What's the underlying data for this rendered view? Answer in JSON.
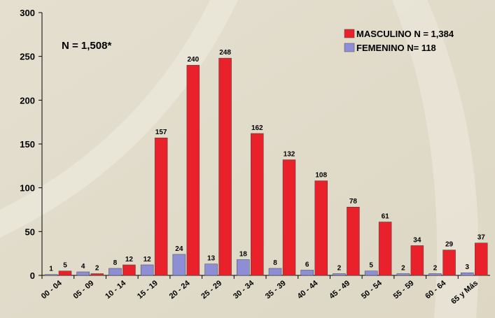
{
  "chart_data": {
    "type": "bar",
    "annotation": "N = 1,508*",
    "categories": [
      "00 - 04",
      "05 - 09",
      "10 - 14",
      "15 - 19",
      "20 - 24",
      "25 - 29",
      "30 - 34",
      "35 - 39",
      "40 - 44",
      "45 - 49",
      "50 - 54",
      "55 - 59",
      "60 - 64",
      "65 y Más"
    ],
    "series": [
      {
        "name": "MASCULINO N = 1,384",
        "color": "#e8212b",
        "values": [
          5,
          2,
          12,
          157,
          240,
          248,
          162,
          132,
          108,
          78,
          61,
          34,
          29,
          37
        ]
      },
      {
        "name": "FEMENINO N= 118",
        "color": "#8e8ed6",
        "values": [
          1,
          4,
          8,
          12,
          24,
          13,
          18,
          8,
          6,
          2,
          5,
          2,
          2,
          3
        ]
      }
    ],
    "ylim": [
      0,
      300
    ],
    "yticks": [
      0,
      50,
      100,
      150,
      200,
      250,
      300
    ],
    "legend": "top-right"
  }
}
